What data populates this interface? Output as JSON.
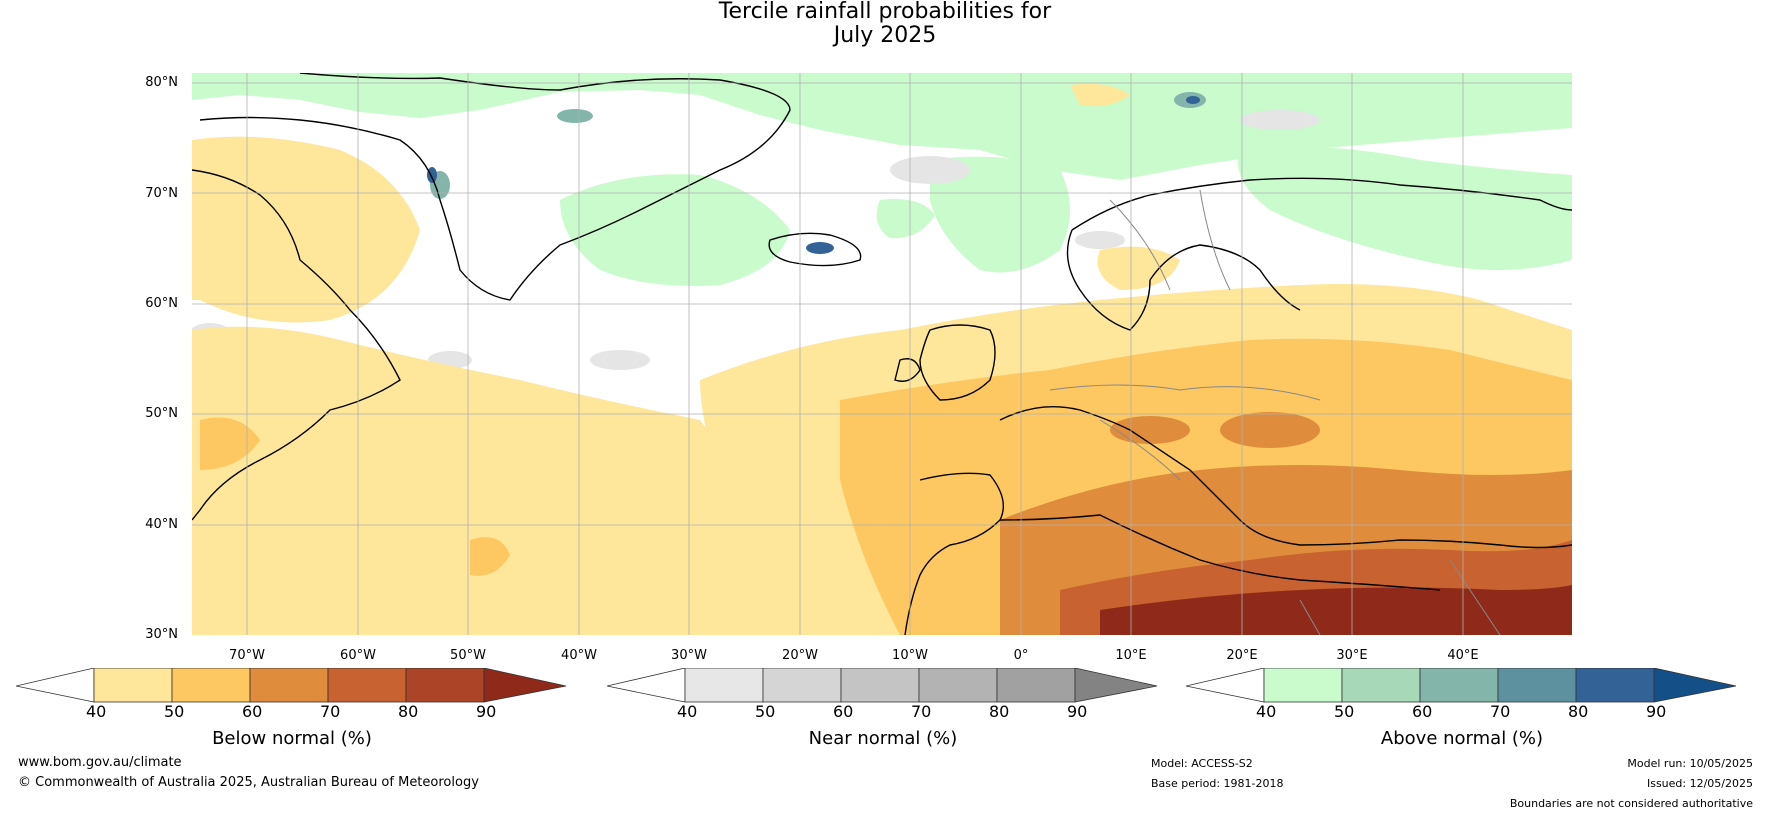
{
  "title_line1": "Tercile rainfall probabilities for",
  "title_line2": "July 2025",
  "lat_labels": [
    "80°N",
    "70°N",
    "60°N",
    "50°N",
    "40°N",
    "30°N"
  ],
  "lon_labels": [
    "70°W",
    "60°W",
    "50°W",
    "40°W",
    "30°W",
    "20°W",
    "10°W",
    "0°",
    "10°E",
    "20°E",
    "30°E",
    "40°E"
  ],
  "colorbars": [
    {
      "label": "Below normal (%)",
      "ticks": [
        "40",
        "50",
        "60",
        "70",
        "80",
        "90"
      ],
      "colors": [
        "#ffffff",
        "#fee79b",
        "#fdc762",
        "#df8c3d",
        "#c86230",
        "#ac4527",
        "#8f2a1a"
      ]
    },
    {
      "label": "Near normal (%)",
      "ticks": [
        "40",
        "50",
        "60",
        "70",
        "80",
        "90"
      ],
      "colors": [
        "#ffffff",
        "#e7e7e7",
        "#d5d5d5",
        "#c4c4c4",
        "#b3b3b3",
        "#a1a1a1",
        "#838383"
      ]
    },
    {
      "label": "Above normal (%)",
      "ticks": [
        "40",
        "50",
        "60",
        "70",
        "80",
        "90"
      ],
      "colors": [
        "#ffffff",
        "#c9fbcc",
        "#a7d8b7",
        "#83b5aa",
        "#5d91a0",
        "#326296",
        "#154f88"
      ]
    }
  ],
  "footer": {
    "url": "www.bom.gov.au/climate",
    "copyright": "© Commonwealth of Australia 2025, Australian Bureau of Meteorology",
    "model": "Model: ACCESS-S2",
    "base_period": "Base period: 1981-2018",
    "model_run": "Model run: 10/05/2025",
    "issued": "Issued: 12/05/2025",
    "disclaimer": "Boundaries are not considered authoritative"
  }
}
